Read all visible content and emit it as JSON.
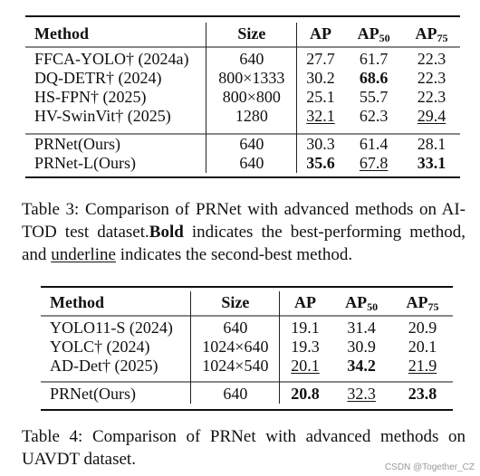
{
  "table3": {
    "headers": [
      "Method",
      "Size",
      "AP",
      "AP",
      "AP"
    ],
    "header_subs": [
      "",
      "",
      "",
      "50",
      "75"
    ],
    "groups": [
      [
        [
          "FFCA-YOLO† (2024a)",
          "640",
          "27.7",
          "61.7",
          "22.3"
        ],
        [
          "DQ-DETR† (2024)",
          "800×1333",
          "30.2",
          "68.6",
          "22.3"
        ],
        [
          "HS-FPN† (2025)",
          "800×800",
          "25.1",
          "55.7",
          "22.3"
        ],
        [
          "HV-SwinVit† (2025)",
          "1280",
          "32.1",
          "62.3",
          "29.4"
        ]
      ],
      [
        [
          "PRNet(Ours)",
          "640",
          "30.3",
          "61.4",
          "28.1"
        ],
        [
          "PRNet-L(Ours)",
          "640",
          "35.6",
          "67.8",
          "33.1"
        ]
      ]
    ],
    "caption": {
      "part1": "Table 3: Comparison of PRNet with advanced methods on AI-TOD test dataset.",
      "bold_word": "Bold",
      "part2": " indicates the best-performing method, and ",
      "underline_word": "underline",
      "part3": " indicates the second-best method."
    }
  },
  "table4": {
    "headers": [
      "Method",
      "Size",
      "AP",
      "AP",
      "AP"
    ],
    "header_subs": [
      "",
      "",
      "",
      "50",
      "75"
    ],
    "groups": [
      [
        [
          "YOLO11-S (2024)",
          "640",
          "19.1",
          "31.4",
          "20.9"
        ],
        [
          "YOLC† (2024)",
          "1024×640",
          "19.3",
          "30.9",
          "20.1"
        ],
        [
          "AD-Det† (2025)",
          "1024×540",
          "20.1",
          "34.2",
          "21.9"
        ]
      ],
      [
        [
          "PRNet(Ours)",
          "640",
          "20.8",
          "32.3",
          "23.8"
        ]
      ]
    ],
    "caption": "Table 4: Comparison of PRNet with advanced methods on UAVDT dataset."
  },
  "watermark": "CSDN @Together_CZ"
}
